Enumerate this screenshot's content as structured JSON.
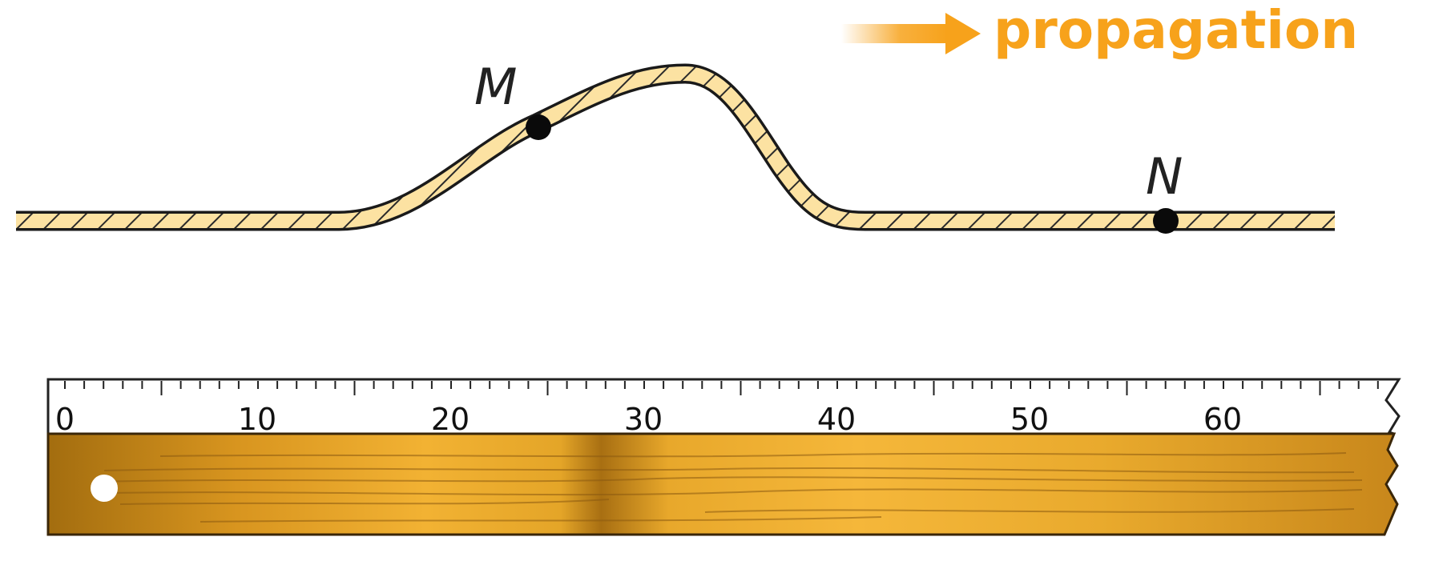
{
  "propagation_label": "propagation",
  "points": {
    "m": {
      "label": "M"
    },
    "n": {
      "label": "N"
    }
  },
  "ruler": {
    "labels": [
      "0",
      "10",
      "20",
      "30",
      "40",
      "50",
      "60"
    ]
  },
  "colors": {
    "accent": "#F7A21B",
    "rope_fill": "#FCE2A2",
    "rope_outline": "#1a1a1a",
    "wood_dark": "#A06A10",
    "wood_light": "#F2B233"
  }
}
